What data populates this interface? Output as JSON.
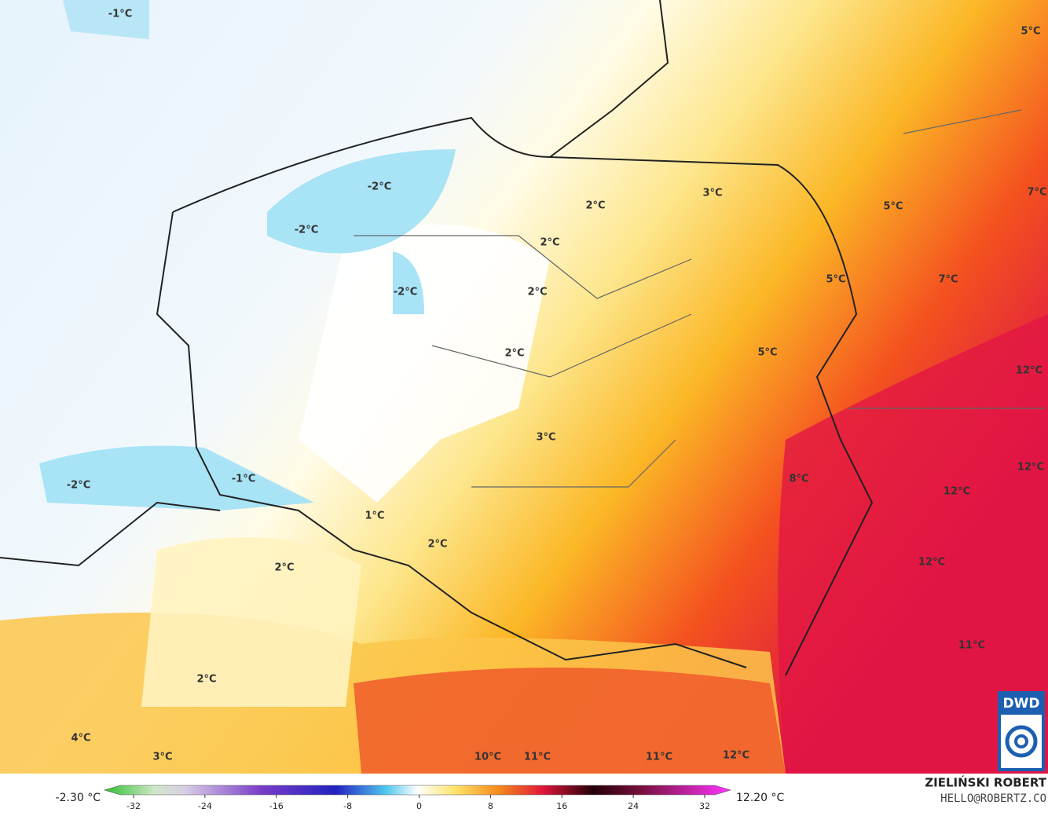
{
  "map": {
    "labels": [
      "-1°C",
      "-2°C",
      "-2°C",
      "-2°C",
      "2°C",
      "3°C",
      "2°C",
      "2°C",
      "5°C",
      "7°C",
      "5°C",
      "7°C",
      "2°C",
      "5°C",
      "12°C",
      "3°C",
      "12°C",
      "-2°C",
      "-1°C",
      "8°C",
      "12°C",
      "1°C",
      "2°C",
      "2°C",
      "12°C",
      "11°C",
      "2°C",
      "4°C",
      "3°C",
      "10°C",
      "11°C",
      "11°C",
      "12°C",
      "5°C"
    ],
    "logo": "DWD"
  },
  "colorbar": {
    "min_label": "-2.30 °C",
    "max_label": "12.20 °C",
    "ticks": [
      -32,
      -24,
      -16,
      -8,
      0,
      8,
      16,
      24,
      32
    ]
  },
  "footer": {
    "author": "ZIELIŃSKI ROBERT",
    "email": "HELLO@ROBERTZ.CO"
  }
}
